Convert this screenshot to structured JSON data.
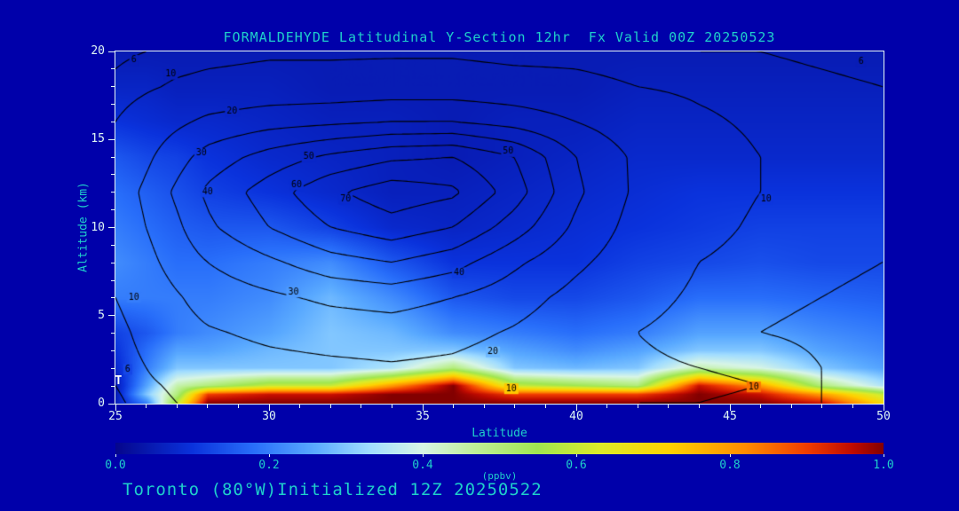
{
  "title": "FORMALDEHYDE Latitudinal Y-Section 12hr  Fx Valid 00Z 20250523",
  "footer": "Toronto (80°W)Initialized 12Z 20250522",
  "station_marker": {
    "label": "T",
    "lat": 25.1,
    "alt": 1.3
  },
  "colors": {
    "background": "#0000AA",
    "heading_text": "#1FCFCB",
    "tick_text": "#DFF6F4",
    "frame": "#E8F8F6",
    "contour": "#000000",
    "station_text": "#FFFFFF"
  },
  "axes": {
    "x": {
      "label": "Latitude",
      "min": 25,
      "max": 50,
      "major_ticks": [
        25,
        30,
        35,
        40,
        45,
        50
      ],
      "minor_step": 1
    },
    "y": {
      "label": "Altitude (km)",
      "min": 0,
      "max": 20,
      "major_ticks": [
        0,
        5,
        10,
        15,
        20
      ],
      "minor_step": 1
    }
  },
  "colorbar": {
    "label": "(ppbv)",
    "min": 0.0,
    "max": 1.0,
    "ticks": [
      "0.0",
      "0.2",
      "0.4",
      "0.6",
      "0.8",
      "1.0"
    ]
  },
  "chart_data": {
    "type": "heatmap",
    "title": "FORMALDEHYDE Latitudinal Y-Section 12hr  Fx Valid 00Z 20250523",
    "xlabel": "Latitude",
    "ylabel": "Altitude (km)",
    "xlim": [
      25,
      50
    ],
    "ylim": [
      0,
      20
    ],
    "colorbar_label": "(ppbv)",
    "colorbar_range": [
      0.0,
      1.0
    ],
    "x_lat": [
      25,
      26,
      27,
      28,
      30,
      32,
      34,
      36,
      38,
      40,
      42,
      44,
      46,
      48,
      50
    ],
    "y_alt": [
      0,
      0.5,
      1,
      2,
      3,
      4,
      6,
      8,
      10,
      12,
      14,
      16,
      18,
      20
    ],
    "fill_values_ppbv": [
      [
        0.06,
        0.2,
        0.6,
        1.0,
        1.0,
        1.0,
        1.0,
        1.0,
        1.0,
        1.0,
        1.0,
        1.0,
        1.0,
        0.95,
        0.7
      ],
      [
        0.05,
        0.3,
        0.5,
        0.9,
        0.95,
        0.95,
        1.0,
        1.0,
        0.9,
        0.9,
        0.9,
        1.0,
        0.95,
        0.8,
        0.6
      ],
      [
        0.05,
        0.25,
        0.45,
        0.5,
        0.6,
        0.6,
        0.8,
        1.0,
        0.6,
        0.55,
        0.5,
        0.95,
        0.8,
        0.5,
        0.35
      ],
      [
        0.08,
        0.2,
        0.3,
        0.3,
        0.3,
        0.3,
        0.35,
        0.5,
        0.3,
        0.28,
        0.3,
        0.45,
        0.4,
        0.3,
        0.25
      ],
      [
        0.1,
        0.18,
        0.25,
        0.25,
        0.28,
        0.3,
        0.3,
        0.3,
        0.25,
        0.22,
        0.25,
        0.3,
        0.3,
        0.25,
        0.22
      ],
      [
        0.12,
        0.15,
        0.2,
        0.22,
        0.25,
        0.3,
        0.28,
        0.22,
        0.2,
        0.18,
        0.2,
        0.25,
        0.25,
        0.22,
        0.2
      ],
      [
        0.2,
        0.2,
        0.2,
        0.2,
        0.22,
        0.28,
        0.22,
        0.15,
        0.13,
        0.13,
        0.15,
        0.18,
        0.18,
        0.17,
        0.16
      ],
      [
        0.22,
        0.2,
        0.18,
        0.18,
        0.2,
        0.22,
        0.15,
        0.1,
        0.1,
        0.1,
        0.12,
        0.13,
        0.14,
        0.13,
        0.13
      ],
      [
        0.2,
        0.18,
        0.16,
        0.15,
        0.15,
        0.12,
        0.08,
        0.07,
        0.08,
        0.09,
        0.1,
        0.11,
        0.12,
        0.12,
        0.12
      ],
      [
        0.18,
        0.16,
        0.14,
        0.12,
        0.1,
        0.08,
        0.06,
        0.06,
        0.07,
        0.08,
        0.09,
        0.1,
        0.1,
        0.1,
        0.1
      ],
      [
        0.15,
        0.13,
        0.12,
        0.1,
        0.08,
        0.07,
        0.06,
        0.05,
        0.06,
        0.07,
        0.08,
        0.08,
        0.08,
        0.08,
        0.08
      ],
      [
        0.1,
        0.09,
        0.08,
        0.08,
        0.07,
        0.06,
        0.06,
        0.05,
        0.06,
        0.06,
        0.07,
        0.07,
        0.07,
        0.07,
        0.07
      ],
      [
        0.07,
        0.07,
        0.06,
        0.06,
        0.06,
        0.05,
        0.05,
        0.05,
        0.05,
        0.05,
        0.06,
        0.06,
        0.06,
        0.06,
        0.06
      ],
      [
        0.05,
        0.05,
        0.05,
        0.05,
        0.05,
        0.05,
        0.05,
        0.05,
        0.05,
        0.05,
        0.05,
        0.05,
        0.05,
        0.05,
        0.05
      ]
    ],
    "contour_overlay": {
      "x_lat": [
        25,
        26,
        27,
        28,
        30,
        32,
        34,
        36,
        38,
        40,
        42,
        44,
        46,
        48,
        50
      ],
      "y_alt": [
        0,
        1,
        2,
        4,
        6,
        8,
        10,
        12,
        14,
        16,
        18,
        20
      ],
      "levels": [
        6,
        10,
        20,
        30,
        40,
        50,
        60,
        70
      ],
      "values": [
        [
          5,
          8,
          10,
          11,
          12,
          13,
          14,
          13,
          12,
          11,
          10,
          10,
          9,
          6,
          4
        ],
        [
          6,
          9,
          11,
          13,
          14,
          15,
          16,
          15,
          13,
          12,
          11,
          11,
          10,
          6,
          4
        ],
        [
          7,
          10,
          13,
          15,
          17,
          18,
          19,
          18,
          15,
          13,
          11,
          10,
          9,
          6,
          4
        ],
        [
          8,
          12,
          16,
          19,
          22,
          24,
          25,
          23,
          19,
          14,
          10,
          8,
          6,
          5,
          4
        ],
        [
          10,
          14,
          19,
          24,
          28,
          32,
          34,
          30,
          24,
          17,
          12,
          9,
          7,
          6,
          5
        ],
        [
          12,
          17,
          24,
          30,
          38,
          46,
          50,
          44,
          32,
          22,
          14,
          10,
          8,
          7,
          6
        ],
        [
          13,
          20,
          28,
          38,
          50,
          60,
          66,
          60,
          45,
          28,
          16,
          12,
          9,
          8,
          7
        ],
        [
          14,
          22,
          32,
          42,
          55,
          68,
          76,
          72,
          55,
          32,
          18,
          13,
          10,
          9,
          8
        ],
        [
          12,
          18,
          26,
          34,
          44,
          52,
          58,
          60,
          50,
          30,
          18,
          13,
          10,
          9,
          8
        ],
        [
          10,
          14,
          18,
          22,
          26,
          28,
          30,
          30,
          26,
          20,
          14,
          11,
          9,
          8,
          7
        ],
        [
          7,
          9,
          11,
          12,
          13,
          13,
          14,
          14,
          13,
          12,
          10,
          9,
          8,
          7,
          6
        ],
        [
          5,
          6,
          7,
          8,
          9,
          9,
          9,
          9,
          8,
          8,
          7,
          6,
          6,
          5,
          4
        ]
      ],
      "labels": [
        {
          "level": 6,
          "lat": 25.6,
          "alt": 19.5
        },
        {
          "level": 10,
          "lat": 26.8,
          "alt": 18.7
        },
        {
          "level": 20,
          "lat": 28.8,
          "alt": 16.6
        },
        {
          "level": 30,
          "lat": 27.8,
          "alt": 14.2
        },
        {
          "level": 40,
          "lat": 28.0,
          "alt": 12.0
        },
        {
          "level": 50,
          "lat": 31.3,
          "alt": 14.0
        },
        {
          "level": 60,
          "lat": 30.9,
          "alt": 12.4
        },
        {
          "level": 70,
          "lat": 32.5,
          "alt": 11.6
        },
        {
          "level": 50,
          "lat": 37.8,
          "alt": 14.3
        },
        {
          "level": 30,
          "lat": 30.8,
          "alt": 6.3
        },
        {
          "level": 40,
          "lat": 36.2,
          "alt": 7.4
        },
        {
          "level": 10,
          "lat": 25.6,
          "alt": 6.0
        },
        {
          "level": 6,
          "lat": 25.4,
          "alt": 1.9
        },
        {
          "level": 20,
          "lat": 37.3,
          "alt": 2.9
        },
        {
          "level": 10,
          "lat": 37.9,
          "alt": 0.8
        },
        {
          "level": 10,
          "lat": 45.8,
          "alt": 0.9
        },
        {
          "level": 10,
          "lat": 46.2,
          "alt": 11.6
        },
        {
          "level": 6,
          "lat": 49.3,
          "alt": 19.4
        }
      ]
    },
    "colormap_stops": [
      {
        "v": 0.0,
        "rgb": [
          5,
          5,
          140
        ]
      },
      {
        "v": 0.1,
        "rgb": [
          10,
          50,
          220
        ]
      },
      {
        "v": 0.18,
        "rgb": [
          40,
          110,
          250
        ]
      },
      {
        "v": 0.26,
        "rgb": [
          90,
          170,
          255
        ]
      },
      {
        "v": 0.33,
        "rgb": [
          160,
          220,
          255
        ]
      },
      {
        "v": 0.4,
        "rgb": [
          215,
          245,
          230
        ]
      },
      {
        "v": 0.47,
        "rgb": [
          190,
          240,
          150
        ]
      },
      {
        "v": 0.55,
        "rgb": [
          160,
          230,
          80
        ]
      },
      {
        "v": 0.63,
        "rgb": [
          220,
          235,
          40
        ]
      },
      {
        "v": 0.72,
        "rgb": [
          255,
          210,
          0
        ]
      },
      {
        "v": 0.82,
        "rgb": [
          255,
          140,
          0
        ]
      },
      {
        "v": 0.9,
        "rgb": [
          240,
          60,
          0
        ]
      },
      {
        "v": 0.96,
        "rgb": [
          190,
          10,
          0
        ]
      },
      {
        "v": 1.0,
        "rgb": [
          130,
          0,
          0
        ]
      }
    ]
  }
}
